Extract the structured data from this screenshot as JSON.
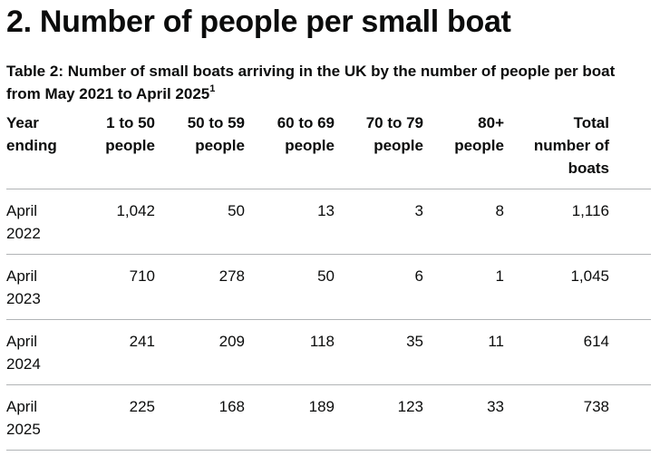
{
  "heading": "2. Number of people per small boat",
  "caption": {
    "text": "Table 2: Number of small boats arriving in the UK by the number of people per boat from May 2021 to April 2025",
    "footnote": "1"
  },
  "table": {
    "headers": [
      "Year ending",
      "1 to 50 people",
      "50 to 59 people",
      "60 to 69 people",
      "70 to 79 people",
      "80+ people",
      "Total number of boats"
    ],
    "rows": [
      [
        "April 2022",
        "1,042",
        "50",
        "13",
        "3",
        "8",
        "1,116"
      ],
      [
        "April 2023",
        "710",
        "278",
        "50",
        "6",
        "1",
        "1,045"
      ],
      [
        "April 2024",
        "241",
        "209",
        "118",
        "35",
        "11",
        "614"
      ],
      [
        "April 2025",
        "225",
        "168",
        "189",
        "123",
        "33",
        "738"
      ]
    ]
  }
}
